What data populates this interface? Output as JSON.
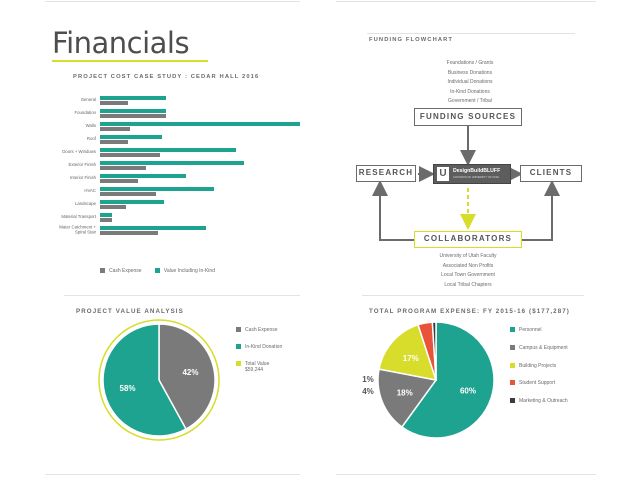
{
  "left": {
    "title": "Financials",
    "cost_chart": {
      "heading": "PROJECT COST CASE STUDY : CEDAR HALL 2016",
      "legend": [
        {
          "label": "Cash Expense",
          "color": "#7a7a7a"
        },
        {
          "label": "Value Including In-Kind",
          "color": "#1fa391"
        }
      ]
    },
    "value_chart": {
      "heading": "PROJECT VALUE ANALYSIS",
      "legend": [
        {
          "label": "Cash Expense",
          "color": "#7a7a7a"
        },
        {
          "label": "In-Kind Donation",
          "color": "#1fa391"
        },
        {
          "label": "Total Value",
          "color": "#d8dc2a"
        }
      ],
      "total_value": "$59,244"
    }
  },
  "right": {
    "flow": {
      "heading": "FUNDING FLOWCHART",
      "sources_list": [
        "Foundations / Grants",
        "Business Donations",
        "Individual Donations",
        "In-Kind Donations",
        "Government / Tribal"
      ],
      "funding_sources": "FUNDING SOURCES",
      "research": "RESEARCH",
      "clients": "CLIENTS",
      "collaborators": "COLLABORATORS",
      "center_logo": "U",
      "center_name": "DesignBuildBLUFF",
      "center_sub": "A DIVISION OF UNIVERSITY OF UTAH",
      "collab_list": [
        "University of Utah Faculty",
        "Associated Non Profits",
        "Local Town Government",
        "Local Tribal Chapters"
      ]
    },
    "expense": {
      "heading": "TOTAL PROGRAM EXPENSE: FY 2015-16 ($177,287)",
      "legend": [
        {
          "label": "Personnel",
          "color": "#1fa391"
        },
        {
          "label": "Campus & Equipment",
          "color": "#7a7a7a"
        },
        {
          "label": "Building Projects",
          "color": "#d8dc2a"
        },
        {
          "label": "Student Support",
          "color": "#e8533a"
        },
        {
          "label": "Marketing & Outreach",
          "color": "#3b3b3b"
        }
      ]
    }
  },
  "chart_data": [
    {
      "type": "bar",
      "title": "PROJECT COST CASE STUDY : CEDAR HALL 2016",
      "categories": [
        "General",
        "Foundation",
        "Walls",
        "Roof",
        "Doors + Windows",
        "Exterior Finish",
        "Interior Finish",
        "HVAC",
        "Landscape",
        "Material Transport",
        "Water Catchment + Spiral Stair"
      ],
      "series": [
        {
          "name": "Value Including In-Kind",
          "color": "#1fa391",
          "values": [
            66,
            66,
            200,
            62,
            136,
            144,
            86,
            114,
            64,
            12,
            106
          ]
        },
        {
          "name": "Cash Expense",
          "color": "#7a7a7a",
          "values": [
            28,
            66,
            30,
            28,
            60,
            46,
            38,
            56,
            26,
            12,
            58
          ]
        }
      ],
      "ylim": [
        0,
        200
      ]
    },
    {
      "type": "pie",
      "title": "PROJECT VALUE ANALYSIS",
      "categories": [
        "Cash Expense",
        "In-Kind Donation"
      ],
      "values": [
        42,
        58
      ],
      "labels": [
        "42%",
        "58%"
      ],
      "colors": [
        "#7a7a7a",
        "#1fa391"
      ]
    },
    {
      "type": "pie",
      "title": "TOTAL PROGRAM EXPENSE: FY 2015-16 ($177,287)",
      "categories": [
        "Personnel",
        "Campus & Equipment",
        "Building Projects",
        "Student Support",
        "Marketing & Outreach"
      ],
      "values": [
        60,
        18,
        17,
        4,
        1
      ],
      "labels": [
        "60%",
        "18%",
        "17%",
        "4%",
        "1%"
      ],
      "colors": [
        "#1fa391",
        "#7a7a7a",
        "#d8dc2a",
        "#e8533a",
        "#3b3b3b"
      ]
    }
  ]
}
